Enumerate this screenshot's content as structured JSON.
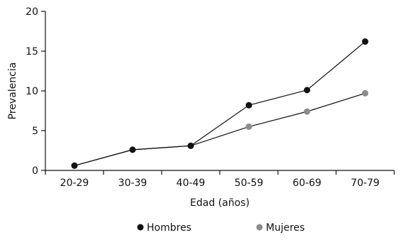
{
  "chart_data": {
    "type": "line",
    "title": "",
    "xlabel": "Edad (años)",
    "ylabel": "Prevalencia",
    "categories": [
      "20-29",
      "30-39",
      "40-49",
      "50-59",
      "60-69",
      "70-79"
    ],
    "ylim": [
      0,
      20
    ],
    "yticks": [
      0,
      5,
      10,
      15,
      20
    ],
    "grid": false,
    "legend_position": "bottom",
    "series": [
      {
        "name": "Hombres",
        "color": "#111111",
        "values": [
          0.6,
          2.6,
          3.1,
          8.2,
          10.1,
          16.2
        ]
      },
      {
        "name": "Mujeres",
        "color": "#8c8c8c",
        "values": [
          0.6,
          2.6,
          3.1,
          5.5,
          7.4,
          9.7
        ]
      }
    ]
  }
}
